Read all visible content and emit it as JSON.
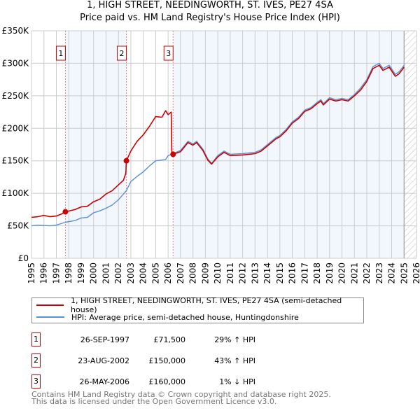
{
  "title_line1": "1, HIGH STREET, NEEDINGWORTH, ST. IVES, PE27 4SA",
  "title_line2": "Price paid vs. HM Land Registry's House Price Index (HPI)",
  "chart_data": {
    "type": "line",
    "title": "1, HIGH STREET, NEEDINGWORTH, ST. IVES, PE27 4SA — Price paid vs. HM Land Registry's House Price Index (HPI)",
    "xlim": [
      1995,
      2026
    ],
    "ylim": [
      0,
      350000
    ],
    "x_ticks": [
      "1995",
      "1996",
      "1997",
      "1998",
      "1999",
      "2000",
      "2001",
      "2002",
      "2003",
      "2004",
      "2005",
      "2006",
      "2007",
      "2008",
      "2009",
      "2010",
      "2011",
      "2012",
      "2013",
      "2014",
      "2015",
      "2016",
      "2017",
      "2018",
      "2019",
      "2020",
      "2021",
      "2022",
      "2023",
      "2024",
      "2025",
      "2026"
    ],
    "y_ticks": [
      {
        "v": 0,
        "label": "£0"
      },
      {
        "v": 50000,
        "label": "£50K"
      },
      {
        "v": 100000,
        "label": "£100K"
      },
      {
        "v": 150000,
        "label": "£150K"
      },
      {
        "v": 200000,
        "label": "£200K"
      },
      {
        "v": 250000,
        "label": "£250K"
      },
      {
        "v": 300000,
        "label": "£300K"
      },
      {
        "v": 350000,
        "label": "£350K"
      }
    ],
    "grid": true,
    "data_end_year": 2025.0,
    "series": [
      {
        "name": "1, HIGH STREET, NEEDINGWORTH, ST. IVES, PE27 4SA (semi-detached house)",
        "color": "#cc0000",
        "points": [
          [
            1995,
            63000
          ],
          [
            1995.5,
            64000
          ],
          [
            1996,
            66000
          ],
          [
            1996.5,
            64000
          ],
          [
            1997,
            65000
          ],
          [
            1997.4,
            68000
          ],
          [
            1997.73,
            71500
          ],
          [
            1998.5,
            75000
          ],
          [
            1999,
            79000
          ],
          [
            1999.5,
            80000
          ],
          [
            2000,
            87000
          ],
          [
            2000.5,
            91000
          ],
          [
            2001,
            99000
          ],
          [
            2001.5,
            104000
          ],
          [
            2002,
            113000
          ],
          [
            2002.4,
            120000
          ],
          [
            2002.6,
            131000
          ],
          [
            2002.64,
            150000
          ],
          [
            2003,
            165000
          ],
          [
            2003.5,
            180000
          ],
          [
            2004,
            190000
          ],
          [
            2004.5,
            203000
          ],
          [
            2005,
            218000
          ],
          [
            2005.5,
            217000
          ],
          [
            2005.8,
            227000
          ],
          [
            2006.0,
            221000
          ],
          [
            2006.25,
            225000
          ],
          [
            2006.3,
            160000
          ],
          [
            2006.4,
            160000
          ],
          [
            2007,
            164000
          ],
          [
            2007.6,
            178000
          ],
          [
            2008,
            174000
          ],
          [
            2008.3,
            178000
          ],
          [
            2008.8,
            166000
          ],
          [
            2009.2,
            151000
          ],
          [
            2009.5,
            145000
          ],
          [
            2010,
            156000
          ],
          [
            2010.5,
            163000
          ],
          [
            2011,
            158000
          ],
          [
            2012,
            159000
          ],
          [
            2013,
            161000
          ],
          [
            2013.5,
            165000
          ],
          [
            2014,
            173000
          ],
          [
            2014.7,
            184000
          ],
          [
            2015,
            187000
          ],
          [
            2015.5,
            196000
          ],
          [
            2016,
            208000
          ],
          [
            2016.5,
            215000
          ],
          [
            2017,
            226000
          ],
          [
            2017.5,
            230000
          ],
          [
            2018,
            238000
          ],
          [
            2018.3,
            242000
          ],
          [
            2018.5,
            236000
          ],
          [
            2019,
            245000
          ],
          [
            2019.5,
            242000
          ],
          [
            2020,
            244000
          ],
          [
            2020.5,
            242000
          ],
          [
            2021,
            250000
          ],
          [
            2021.5,
            259000
          ],
          [
            2022,
            272000
          ],
          [
            2022.5,
            292000
          ],
          [
            2023,
            297000
          ],
          [
            2023.3,
            289000
          ],
          [
            2023.8,
            294000
          ],
          [
            2024.3,
            280000
          ],
          [
            2024.6,
            284000
          ],
          [
            2025,
            294000
          ]
        ]
      },
      {
        "name": "HPI: Average price, semi-detached house, Huntingdonshire",
        "color": "#5b8fd6",
        "points": [
          [
            1995,
            50000
          ],
          [
            1995.5,
            51000
          ],
          [
            1996,
            50500
          ],
          [
            1996.5,
            50000
          ],
          [
            1997,
            51000
          ],
          [
            1997.73,
            55500
          ],
          [
            1998.5,
            58000
          ],
          [
            1999,
            62000
          ],
          [
            1999.5,
            63000
          ],
          [
            2000,
            70000
          ],
          [
            2000.5,
            73000
          ],
          [
            2001,
            77000
          ],
          [
            2001.5,
            82000
          ],
          [
            2002,
            90000
          ],
          [
            2002.64,
            104000
          ],
          [
            2003,
            118000
          ],
          [
            2003.5,
            126000
          ],
          [
            2004,
            133000
          ],
          [
            2004.5,
            142000
          ],
          [
            2005,
            150000
          ],
          [
            2005.8,
            152000
          ],
          [
            2006,
            158000
          ],
          [
            2006.4,
            161000
          ],
          [
            2007,
            166000
          ],
          [
            2007.6,
            180000
          ],
          [
            2008,
            176000
          ],
          [
            2008.3,
            180000
          ],
          [
            2008.8,
            168000
          ],
          [
            2009.2,
            153000
          ],
          [
            2009.5,
            146000
          ],
          [
            2010,
            158000
          ],
          [
            2010.5,
            165000
          ],
          [
            2011,
            160000
          ],
          [
            2012,
            161000
          ],
          [
            2013,
            163000
          ],
          [
            2013.5,
            167000
          ],
          [
            2014,
            175000
          ],
          [
            2014.7,
            186000
          ],
          [
            2015,
            189000
          ],
          [
            2015.5,
            198000
          ],
          [
            2016,
            210000
          ],
          [
            2016.5,
            217000
          ],
          [
            2017,
            228000
          ],
          [
            2017.5,
            232000
          ],
          [
            2018,
            240000
          ],
          [
            2018.3,
            244000
          ],
          [
            2018.5,
            238000
          ],
          [
            2019,
            247000
          ],
          [
            2019.5,
            244000
          ],
          [
            2020,
            246000
          ],
          [
            2020.5,
            244000
          ],
          [
            2021,
            252000
          ],
          [
            2021.5,
            262000
          ],
          [
            2022,
            275000
          ],
          [
            2022.5,
            295000
          ],
          [
            2023,
            300000
          ],
          [
            2023.3,
            292000
          ],
          [
            2023.8,
            297000
          ],
          [
            2024.3,
            283000
          ],
          [
            2024.6,
            287000
          ],
          [
            2025,
            297000
          ]
        ]
      }
    ],
    "sales": [
      {
        "label": "1",
        "year": 1997.73,
        "price": 71500
      },
      {
        "label": "2",
        "year": 2002.64,
        "price": 150000
      },
      {
        "label": "3",
        "year": 2006.4,
        "price": 160000
      }
    ]
  },
  "legend": {
    "red_label": "1, HIGH STREET, NEEDINGWORTH, ST. IVES, PE27 4SA (semi-detached house)",
    "blue_label": "HPI: Average price, semi-detached house, Huntingdonshire"
  },
  "transactions": [
    {
      "num": "1",
      "date": "26-SEP-1997",
      "price": "£71,500",
      "hpi": "29% ↑ HPI"
    },
    {
      "num": "2",
      "date": "23-AUG-2002",
      "price": "£150,000",
      "hpi": "43% ↑ HPI"
    },
    {
      "num": "3",
      "date": "26-MAY-2006",
      "price": "£160,000",
      "hpi": "1% ↓ HPI"
    }
  ],
  "footer": {
    "line1": "Contains HM Land Registry data © Crown copyright and database right 2025.",
    "line2": "This data is licensed under the Open Government Licence v3.0."
  }
}
